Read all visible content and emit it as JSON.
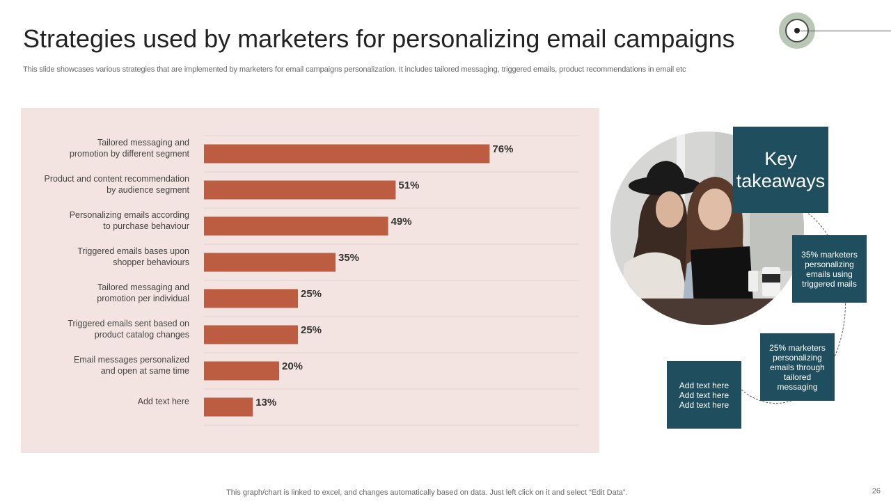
{
  "slide": {
    "title": "Strategies used by marketers for personalizing email campaigns",
    "subtitle": "This slide showcases various strategies that are implemented by marketers for email campaigns personalization. It includes tailored messaging, triggered emails, product recommendations in email etc",
    "footer": "This graph/chart is linked to excel,  and changes automatically based on data. Just left click on it and select “Edit Data”.",
    "page_number": "26"
  },
  "takeaways": {
    "heading": "Key takeaways",
    "box1": "35% marketers personalizing emails using triggered mails",
    "box2": "25% marketers personalizing emails through tailored messaging",
    "box3": "Add text here\nAdd text here\nAdd text here"
  },
  "colors": {
    "bar": "#bc5c41",
    "panel": "#f3e4e1",
    "box": "#1f4e5f"
  },
  "chart_data": {
    "type": "bar",
    "orientation": "horizontal",
    "categories": [
      [
        "Tailored  messaging and",
        "promotion  by different  segment"
      ],
      [
        "Product and content recommendation",
        "by audience segment"
      ],
      [
        "Personalizing emails according",
        "to purchase behaviour"
      ],
      [
        "Triggered  emails bases upon",
        "shopper behaviours"
      ],
      [
        "Tailored  messaging and",
        "promotion  per individual"
      ],
      [
        "Triggered  emails sent based on",
        "product catalog changes"
      ],
      [
        "Email messages personalized",
        "and open at same time"
      ],
      [
        "Add text here"
      ]
    ],
    "values": [
      76,
      51,
      49,
      35,
      25,
      25,
      20,
      13
    ],
    "value_labels": [
      "76%",
      "51%",
      "49%",
      "35%",
      "25%",
      "25%",
      "20%",
      "13%"
    ],
    "xlim": [
      0,
      100
    ],
    "grid": true,
    "legend": "none"
  }
}
